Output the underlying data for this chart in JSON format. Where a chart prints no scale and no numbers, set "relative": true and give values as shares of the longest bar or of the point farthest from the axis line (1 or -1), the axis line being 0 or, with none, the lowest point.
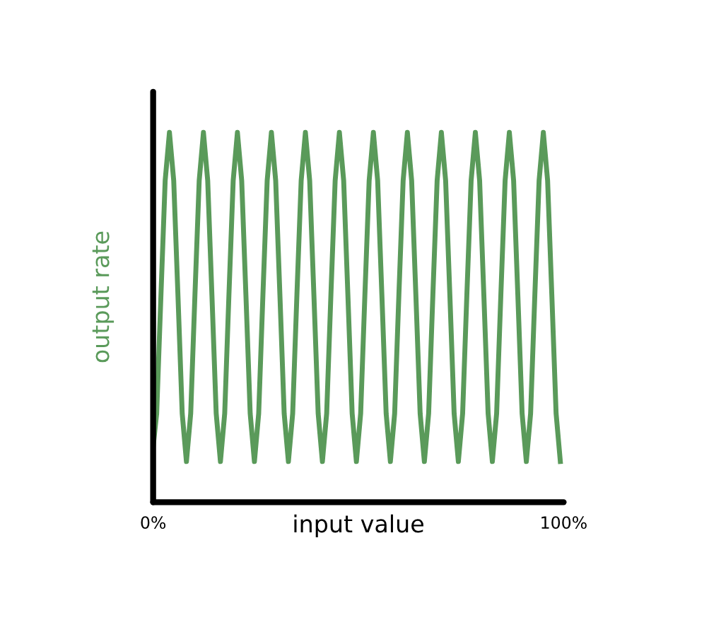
{
  "chart_data": {
    "type": "line",
    "relative": true,
    "xlabel": "input value",
    "ylabel": "output rate",
    "xlim": [
      0,
      100
    ],
    "xticks": [
      {
        "value": 0,
        "label": "0%"
      },
      {
        "value": 100,
        "label": "100%"
      }
    ],
    "tick_labels": "x",
    "grid": false,
    "legend": false,
    "series": [
      {
        "color": "#5a9a5a",
        "x": [
          0,
          0.86,
          1.9,
          2.93,
          3.97,
          5.01,
          6.04,
          7.08,
          8.11,
          9.15,
          10.18,
          11.22,
          12.25,
          13.29,
          14.32,
          15.36,
          16.39,
          17.43,
          18.46,
          19.5,
          20.53,
          21.57,
          22.6,
          23.64,
          24.67,
          25.71,
          26.74,
          27.78,
          28.81,
          29.85,
          30.88,
          31.92,
          32.95,
          33.99,
          35.02,
          36.06,
          37.09,
          38.13,
          39.16,
          40.2,
          41.23,
          42.27,
          43.3,
          44.34,
          45.37,
          46.41,
          47.44,
          48.48,
          49.51,
          50.55,
          51.58,
          52.62,
          53.65,
          54.69,
          55.72,
          56.76,
          57.79,
          58.83,
          59.86,
          60.9,
          61.93,
          62.97,
          64.0,
          65.04,
          66.07,
          67.11,
          68.14,
          69.18,
          70.21,
          71.25,
          72.28,
          73.32,
          74.35,
          75.39,
          76.42,
          77.46,
          78.49,
          79.53,
          80.56,
          81.6,
          82.63,
          83.67,
          84.7,
          85.74,
          86.77,
          87.81,
          88.84,
          89.88,
          90.91,
          91.95,
          92.98,
          94.02,
          95.05,
          96.09,
          97.12,
          98.16,
          99.19
        ],
        "values": [
          0.15,
          0.24,
          0.56,
          0.87,
          1,
          0.87,
          0.56,
          0.24,
          0.11,
          0.24,
          0.56,
          0.87,
          1,
          0.87,
          0.56,
          0.24,
          0.11,
          0.24,
          0.56,
          0.87,
          1,
          0.87,
          0.56,
          0.24,
          0.11,
          0.24,
          0.56,
          0.87,
          1,
          0.87,
          0.56,
          0.24,
          0.11,
          0.24,
          0.56,
          0.87,
          1,
          0.87,
          0.56,
          0.24,
          0.11,
          0.24,
          0.56,
          0.87,
          1,
          0.87,
          0.56,
          0.24,
          0.11,
          0.24,
          0.56,
          0.87,
          1,
          0.87,
          0.56,
          0.24,
          0.11,
          0.24,
          0.56,
          0.87,
          1,
          0.87,
          0.56,
          0.24,
          0.11,
          0.24,
          0.56,
          0.87,
          1,
          0.87,
          0.56,
          0.24,
          0.11,
          0.24,
          0.56,
          0.87,
          1,
          0.87,
          0.56,
          0.24,
          0.11,
          0.24,
          0.56,
          0.87,
          1,
          0.87,
          0.56,
          0.24,
          0.11,
          0.24,
          0.56,
          0.87,
          1,
          0.87,
          0.56,
          0.24,
          0.11
        ]
      }
    ]
  }
}
